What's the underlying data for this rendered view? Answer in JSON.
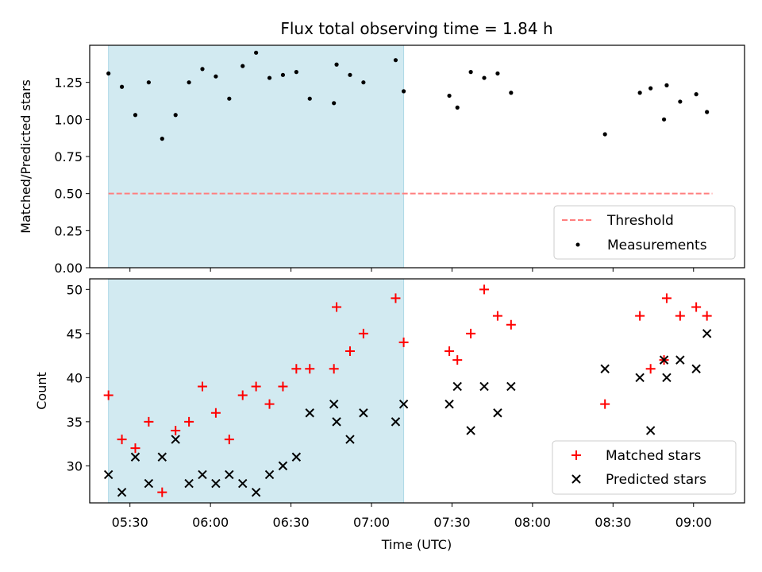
{
  "title": "Flux total observing time = 1.84 h",
  "xlabel": "Time (UTC)",
  "x_tick_labels": [
    "05:30",
    "06:00",
    "06:30",
    "07:00",
    "07:30",
    "08:00",
    "08:30",
    "09:00"
  ],
  "colors": {
    "shade": "#add8e6",
    "threshold": "#ff7f7f",
    "measurement": "#000000",
    "matched": "#ff0000",
    "predicted": "#000000"
  },
  "chart_data": [
    {
      "type": "scatter",
      "ylabel": "Matched/Predicted stars",
      "xlim": [
        "05:15",
        "09:19"
      ],
      "ylim": [
        0,
        1.5
      ],
      "yticks": [
        0.0,
        0.25,
        0.5,
        0.75,
        1.0,
        1.25
      ],
      "ytick_labels": [
        "0.00",
        "0.25",
        "0.50",
        "0.75",
        "1.00",
        "1.25"
      ],
      "shaded_span": [
        "05:22",
        "07:12"
      ],
      "threshold": {
        "name": "Threshold",
        "y": 0.5,
        "x_range": [
          "05:22",
          "09:07"
        ],
        "style": "dashed"
      },
      "legend": {
        "position": "lower right",
        "entries": [
          "Threshold",
          "Measurements"
        ]
      },
      "series": [
        {
          "name": "Measurements",
          "marker": "dot",
          "x": [
            "05:22",
            "05:27",
            "05:32",
            "05:37",
            "05:42",
            "05:47",
            "05:52",
            "05:57",
            "06:02",
            "06:07",
            "06:12",
            "06:17",
            "06:22",
            "06:27",
            "06:32",
            "06:37",
            "06:46",
            "06:47",
            "06:52",
            "06:57",
            "07:09",
            "07:12",
            "07:29",
            "07:32",
            "07:37",
            "07:42",
            "07:47",
            "07:52",
            "08:27",
            "08:40",
            "08:44",
            "08:49",
            "08:50",
            "08:55",
            "09:01",
            "09:05"
          ],
          "y": [
            1.31,
            1.22,
            1.03,
            1.25,
            0.87,
            1.03,
            1.25,
            1.34,
            1.29,
            1.14,
            1.36,
            1.45,
            1.28,
            1.3,
            1.32,
            1.14,
            1.11,
            1.37,
            1.3,
            1.25,
            1.4,
            1.19,
            1.16,
            1.08,
            1.32,
            1.28,
            1.31,
            1.18,
            0.9,
            1.18,
            1.21,
            1.0,
            1.23,
            1.12,
            1.17,
            1.05
          ]
        }
      ]
    },
    {
      "type": "scatter",
      "ylabel": "Count",
      "xlim": [
        "05:15",
        "09:19"
      ],
      "ylim": [
        25.8,
        51.2
      ],
      "yticks": [
        30,
        35,
        40,
        45,
        50
      ],
      "ytick_labels": [
        "30",
        "35",
        "40",
        "45",
        "50"
      ],
      "shaded_span": [
        "05:22",
        "07:12"
      ],
      "legend": {
        "position": "lower right",
        "entries": [
          "Matched stars",
          "Predicted stars"
        ]
      },
      "series": [
        {
          "name": "Matched stars",
          "marker": "plus",
          "x": [
            "05:22",
            "05:27",
            "05:32",
            "05:37",
            "05:42",
            "05:47",
            "05:52",
            "05:57",
            "06:02",
            "06:07",
            "06:12",
            "06:17",
            "06:22",
            "06:27",
            "06:32",
            "06:37",
            "06:46",
            "06:47",
            "06:52",
            "06:57",
            "07:09",
            "07:12",
            "07:29",
            "07:32",
            "07:37",
            "07:42",
            "07:47",
            "07:52",
            "08:27",
            "08:40",
            "08:44",
            "08:49",
            "08:50",
            "08:55",
            "09:01",
            "09:05"
          ],
          "y": [
            38,
            33,
            32,
            35,
            27,
            34,
            35,
            39,
            36,
            33,
            38,
            39,
            37,
            39,
            41,
            41,
            41,
            48,
            43,
            45,
            49,
            44,
            43,
            42,
            45,
            50,
            47,
            46,
            37,
            47,
            41,
            42,
            49,
            47,
            48,
            47
          ]
        },
        {
          "name": "Predicted stars",
          "marker": "x",
          "x": [
            "05:22",
            "05:27",
            "05:32",
            "05:37",
            "05:42",
            "05:47",
            "05:52",
            "05:57",
            "06:02",
            "06:07",
            "06:12",
            "06:17",
            "06:22",
            "06:27",
            "06:32",
            "06:37",
            "06:46",
            "06:47",
            "06:52",
            "06:57",
            "07:09",
            "07:12",
            "07:29",
            "07:32",
            "07:37",
            "07:42",
            "07:47",
            "07:52",
            "08:27",
            "08:40",
            "08:44",
            "08:49",
            "08:50",
            "08:55",
            "09:01",
            "09:05"
          ],
          "y": [
            29,
            27,
            31,
            28,
            31,
            33,
            28,
            29,
            28,
            29,
            28,
            27,
            29,
            30,
            31,
            36,
            37,
            35,
            33,
            36,
            35,
            37,
            37,
            39,
            34,
            39,
            36,
            39,
            41,
            40,
            34,
            42,
            40,
            42,
            41,
            45
          ]
        }
      ]
    }
  ]
}
